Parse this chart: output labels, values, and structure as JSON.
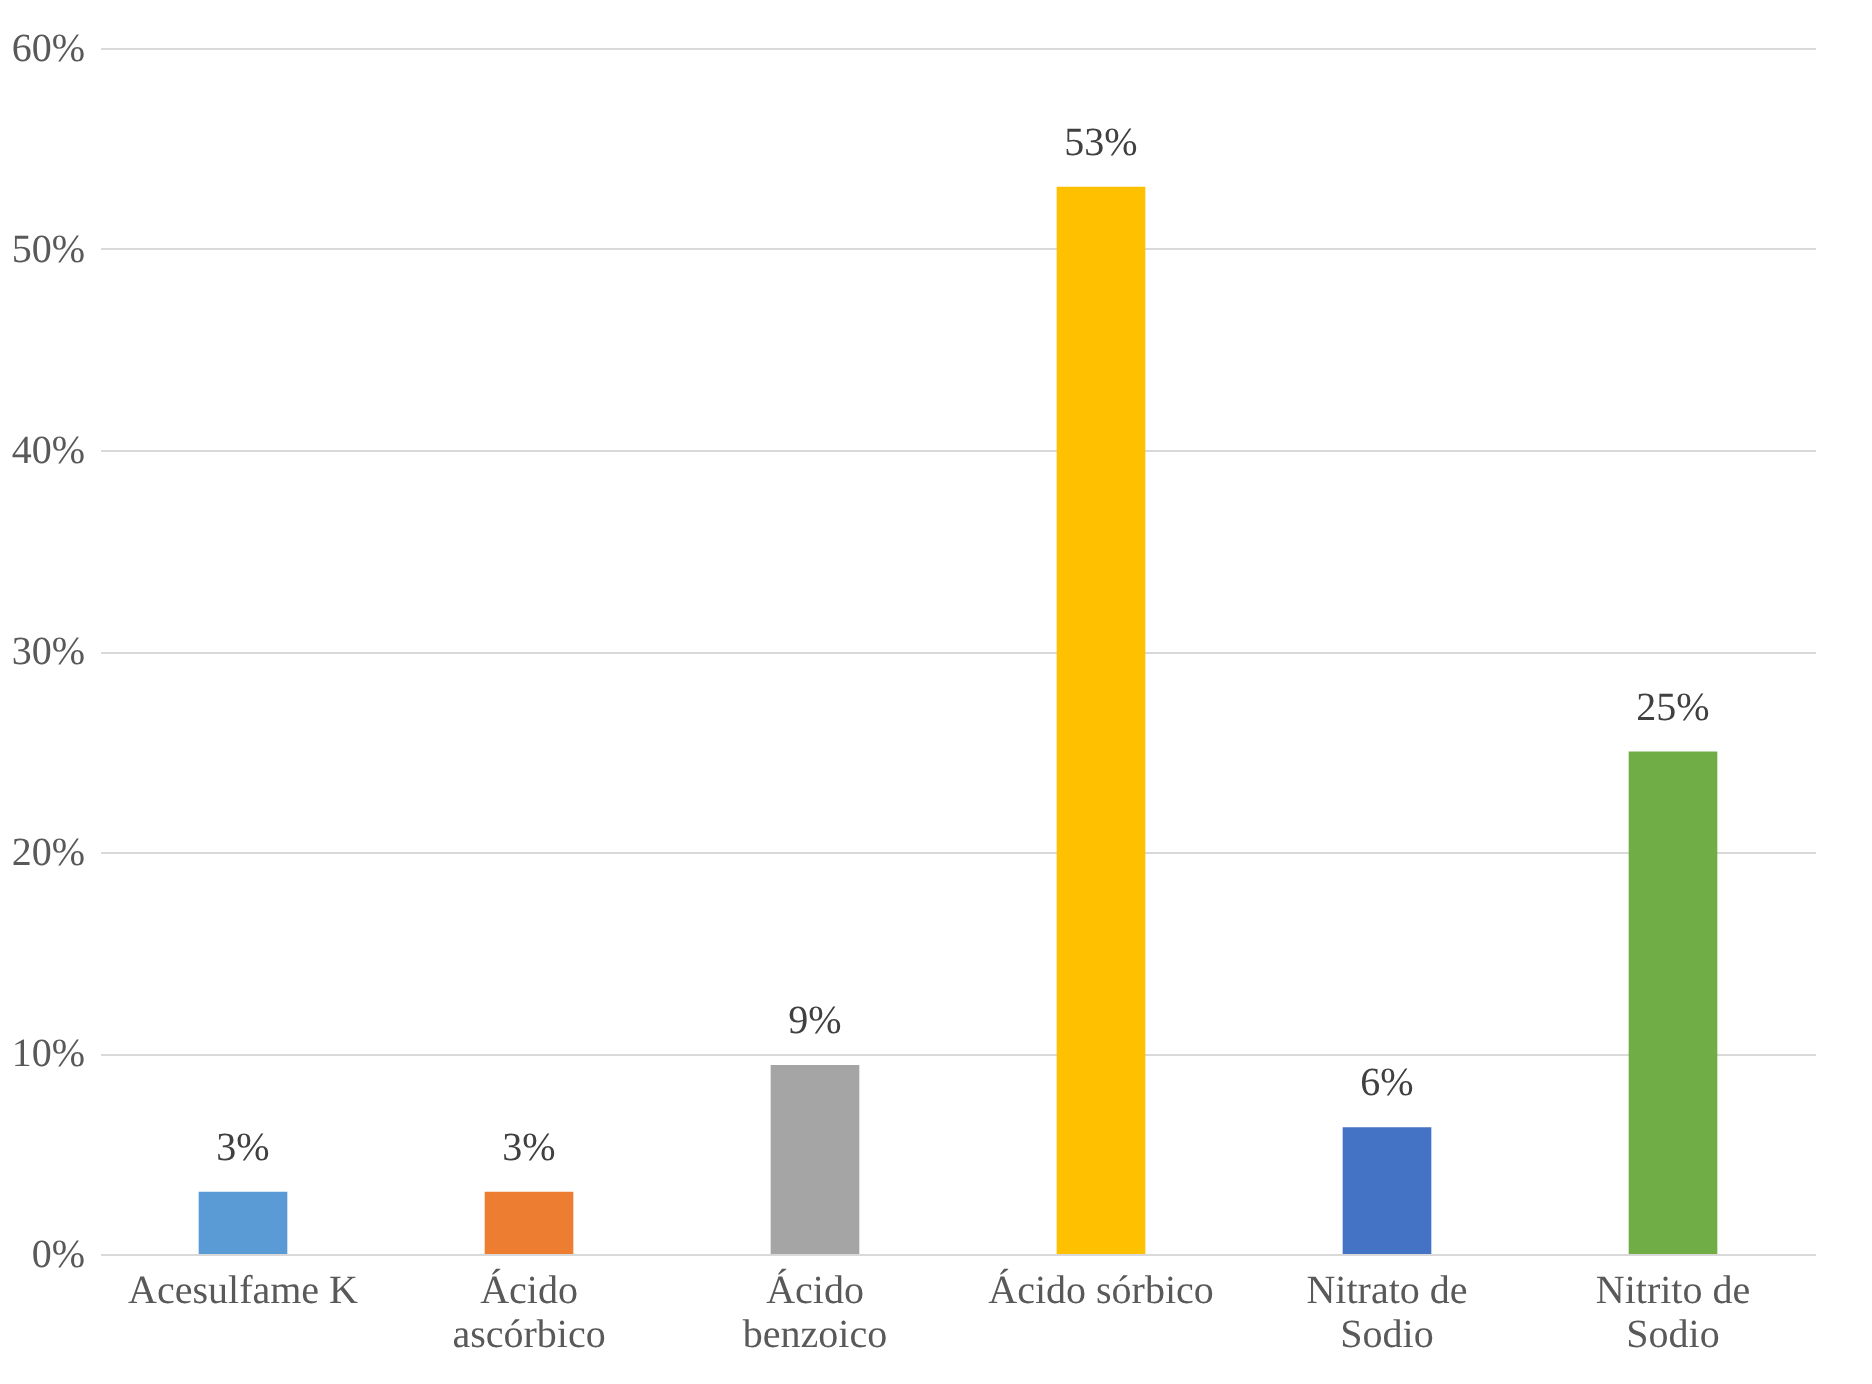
{
  "chart_data": {
    "type": "bar",
    "categories": [
      "Acesulfame K",
      "Ácido ascórbico",
      "Ácido benzoico",
      "Ácido sórbico",
      "Nitrato de Sodio",
      "Nitrito de Sodio"
    ],
    "values": [
      3.1,
      3.1,
      9.4,
      53.1,
      6.3,
      25
    ],
    "colors": [
      "#5b9bd5",
      "#ed7d31",
      "#a5a5a5",
      "#ffc000",
      "#4472c4",
      "#70ad47"
    ],
    "value_labels": [
      "3%",
      "3%",
      "9%",
      "53%",
      "6%",
      "25%"
    ],
    "ylim": [
      0,
      60
    ],
    "yticks": [
      {
        "value": 0,
        "label": "0%"
      },
      {
        "value": 10,
        "label": "10%"
      },
      {
        "value": 20,
        "label": "20%"
      },
      {
        "value": 30,
        "label": "30%"
      },
      {
        "value": 40,
        "label": "40%"
      },
      {
        "value": 50,
        "label": "50%"
      },
      {
        "value": 60,
        "label": "60%"
      }
    ],
    "grid": "y"
  }
}
